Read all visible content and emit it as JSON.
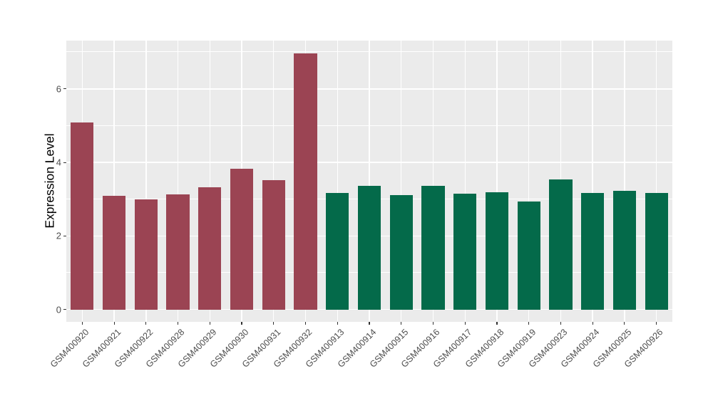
{
  "chart_data": {
    "type": "bar",
    "title": "",
    "xlabel": "",
    "ylabel": "Expression Level",
    "categories": [
      "GSM400920",
      "GSM400921",
      "GSM400922",
      "GSM400928",
      "GSM400929",
      "GSM400930",
      "GSM400931",
      "GSM400932",
      "GSM400913",
      "GSM400914",
      "GSM400915",
      "GSM400916",
      "GSM400917",
      "GSM400918",
      "GSM400919",
      "GSM400923",
      "GSM400924",
      "GSM400925",
      "GSM400926"
    ],
    "values": [
      5.08,
      3.09,
      2.99,
      3.13,
      3.32,
      3.82,
      3.52,
      6.97,
      3.17,
      3.36,
      3.12,
      3.37,
      3.15,
      3.18,
      2.93,
      3.54,
      3.17,
      3.22,
      3.17
    ],
    "bar_groups": [
      "red",
      "red",
      "red",
      "red",
      "red",
      "red",
      "red",
      "red",
      "green",
      "green",
      "green",
      "green",
      "green",
      "green",
      "green",
      "green",
      "green",
      "green",
      "green"
    ],
    "group_colors": {
      "red": "#9B4453",
      "green": "#046A4A"
    },
    "yticks": [
      0,
      2,
      4,
      6
    ],
    "yticks_minor": [
      1,
      3,
      5,
      7
    ],
    "ylim": [
      -0.36,
      7.32
    ],
    "grid": true,
    "legend": false,
    "colors": {
      "panel_background": "#EBEBEB",
      "gridline": "#FFFFFF",
      "axis_text": "#4D4D4D",
      "axis_title": "#000000",
      "tick_mark": "#333333",
      "figure_background": "#FFFFFF"
    }
  }
}
